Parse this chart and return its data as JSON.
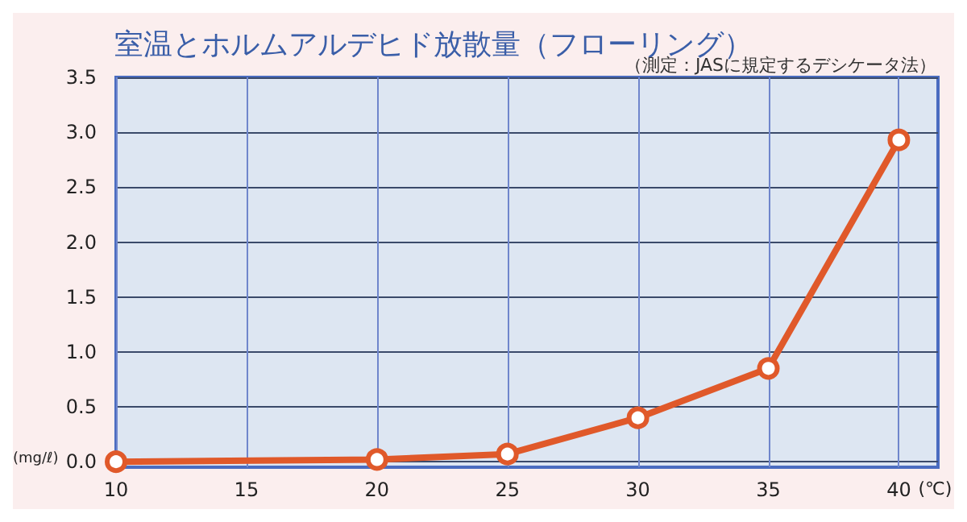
{
  "chart_data": {
    "type": "line",
    "title": "室温とホルムアルデヒド放散量（フローリング）",
    "subtitle": "（測定：JASに規定するデシケータ法）",
    "xlabel": "(℃)",
    "ylabel": "(mg/ℓ)",
    "x": [
      10,
      20,
      25,
      30,
      35,
      40
    ],
    "series": [
      {
        "color": "#e0592a",
        "values": [
          0.0,
          0.02,
          0.07,
          0.4,
          0.85,
          2.93
        ]
      }
    ],
    "xlim": [
      10,
      41.5
    ],
    "xticks": [
      10,
      15,
      20,
      25,
      30,
      35,
      40
    ],
    "ylim": [
      -0.05,
      3.5
    ],
    "yticks": [
      {
        "value": 0,
        "label": "0.0"
      },
      {
        "value": 0.5,
        "label": "0.5"
      },
      {
        "value": 1,
        "label": "1.0"
      },
      {
        "value": 1.5,
        "label": "1.5"
      },
      {
        "value": 2,
        "label": "2.0"
      },
      {
        "value": 2.5,
        "label": "2.5"
      },
      {
        "value": 3,
        "label": "3.0"
      },
      {
        "value": 3.5,
        "label": "3.5"
      }
    ],
    "grid": true,
    "marker": "circle",
    "line_style": "solid"
  }
}
